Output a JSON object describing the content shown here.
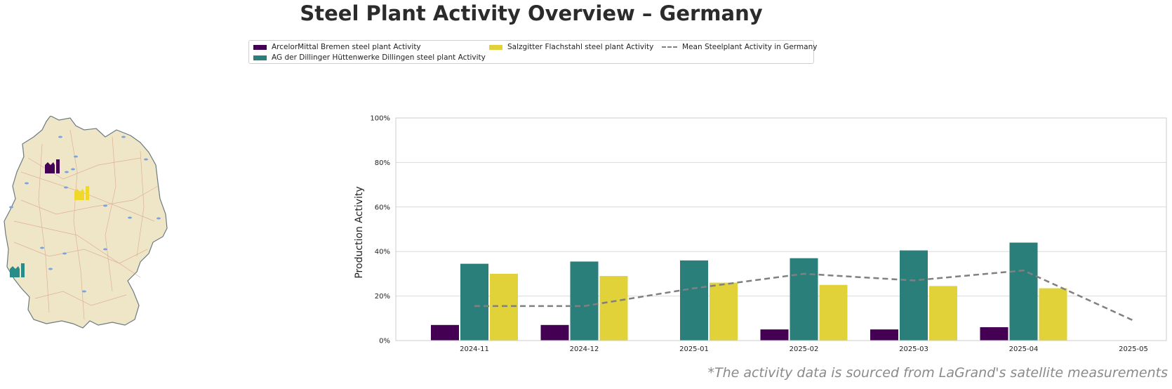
{
  "title": "Steel Plant Activity Overview – Germany",
  "footnote": "*The activity data is sourced from LaGrand's satellite measurements",
  "legend": {
    "bremen": "ArcelorMittal Bremen steel plant Activity",
    "dillingen": "AG der Dillinger Hüttenwerke Dillingen steel plant Activity",
    "salzgitter": "Salzgitter Flachstahl steel plant Activity",
    "mean": "Mean Steelplant Activity in Germany"
  },
  "colors": {
    "bremen": "#440154",
    "dillingen": "#2a7f7a",
    "salzgitter": "#e2d23a",
    "mean": "#808080"
  },
  "map": {
    "icons": [
      "factory-icon-bremen",
      "factory-icon-salzgitter",
      "factory-icon-dillingen"
    ]
  },
  "chart_data": {
    "type": "bar",
    "categories": [
      "2024-11",
      "2024-12",
      "2025-01",
      "2025-02",
      "2025-03",
      "2025-04",
      "2025-05"
    ],
    "series": [
      {
        "name": "ArcelorMittal Bremen steel plant Activity",
        "values": [
          7,
          7,
          null,
          5,
          5,
          6,
          null
        ]
      },
      {
        "name": "AG der Dillinger Hüttenwerke Dillingen steel plant Activity",
        "values": [
          34.5,
          35.5,
          36,
          37,
          40.5,
          44,
          null
        ]
      },
      {
        "name": "Salzgitter Flachstahl steel plant Activity",
        "values": [
          30,
          29,
          26,
          25,
          24.5,
          23.5,
          null
        ]
      }
    ],
    "line": {
      "name": "Mean Steelplant Activity in Germany",
      "values": [
        15.5,
        15.5,
        23.5,
        30,
        27,
        31.5,
        9
      ]
    },
    "ylabel": "Production Activity",
    "ylim": [
      0,
      100
    ],
    "yticks": [
      "0%",
      "20%",
      "40%",
      "60%",
      "80%",
      "100%"
    ],
    "grid": true,
    "legend_position": "top-center"
  }
}
